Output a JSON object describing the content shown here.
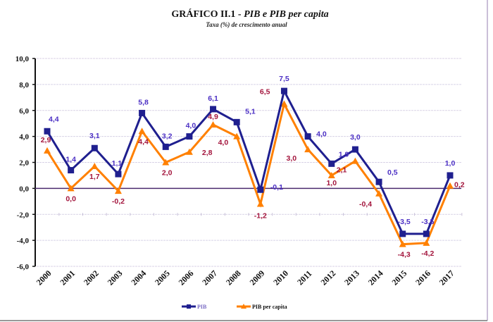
{
  "chart_data": {
    "type": "line",
    "title": "GRÁFICO II.1",
    "title_sep": " - ",
    "title_italic": "PIB e PIB per capita",
    "subtitle": "Taxa (%) de crescimento anual",
    "xlabel": "",
    "ylabel": "",
    "categories": [
      "2000",
      "2001",
      "2002",
      "2003",
      "2004",
      "2005",
      "2006",
      "2007",
      "2008",
      "2009",
      "2010",
      "2011",
      "2012",
      "2013",
      "2014",
      "2015",
      "2016",
      "2017"
    ],
    "series": [
      {
        "name": "PIB",
        "color": "#1f1f8f",
        "label_color": "#4b2fc4",
        "marker": "square",
        "values": [
          4.4,
          1.4,
          3.1,
          1.1,
          5.8,
          3.2,
          4.0,
          6.1,
          5.1,
          -0.1,
          7.5,
          4.0,
          1.9,
          3.0,
          0.5,
          -3.5,
          -3.5,
          1.0
        ],
        "labels": [
          "4,4",
          "1,4",
          "3,1",
          "1,1",
          "5,8",
          "3,2",
          "4,0",
          "6,1",
          "5,1",
          "-0,1",
          "7,5",
          "4,0",
          "1,9",
          "3,0",
          "0,5",
          "-3,5",
          "-3,5",
          "1,0"
        ]
      },
      {
        "name": "PIB per capita",
        "color": "#ff8000",
        "label_color": "#a3143c",
        "marker": "triangle",
        "values": [
          2.9,
          0.0,
          1.7,
          -0.2,
          4.4,
          2.0,
          2.8,
          4.9,
          4.0,
          -1.2,
          6.5,
          3.0,
          1.0,
          2.1,
          -0.4,
          -4.3,
          -4.2,
          0.2
        ],
        "labels": [
          "2,9",
          "0,0",
          "1,7",
          "-0,2",
          "4,4",
          "2,0",
          "2,8",
          "4,9",
          "4,0",
          "-1,2",
          "6,5",
          "3,0",
          "1,0",
          "2,1",
          "-0,4",
          "-4,3",
          "-4,2",
          "0,2"
        ]
      }
    ],
    "ylim": [
      -6.0,
      10.0
    ],
    "yticks": [
      10.0,
      8.0,
      6.0,
      4.0,
      2.0,
      0.0,
      -2.0,
      -4.0,
      -6.0
    ],
    "ytick_labels": [
      "10,0",
      "8,0",
      "6,0",
      "4,0",
      "2,0",
      "0,0",
      "-2,0",
      "-4,0",
      "-6,0"
    ],
    "grid": true,
    "zero_line_color": "#4a2a6e",
    "legend": {
      "placement": "bottom-center",
      "entries": [
        "PIB",
        "PIB per capita"
      ]
    }
  }
}
